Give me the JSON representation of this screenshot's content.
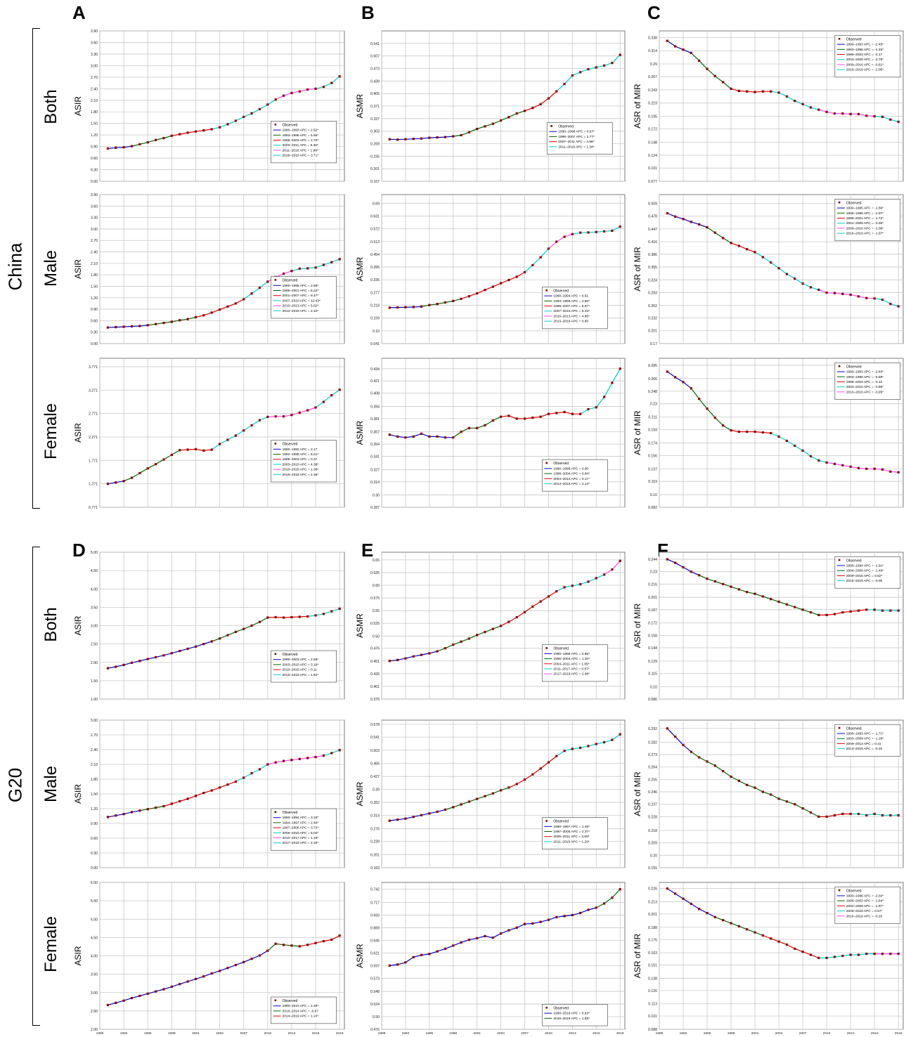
{
  "column_letters": [
    "A",
    "B",
    "C",
    "D",
    "E",
    "F"
  ],
  "group_labels": {
    "china": "China",
    "g20": "G20"
  },
  "row_labels": [
    "Both",
    "Male",
    "Female"
  ],
  "legend_observed": "Observed",
  "series_colors": [
    "#0000cc",
    "#006600",
    "#dd0000",
    "#00cccc",
    "#ff44ff",
    "#00cccc"
  ],
  "observed_color": "#8b0000",
  "xaxis_g20_ticks": [
    "1989",
    "1992",
    "1995",
    "1998",
    "2001",
    "2004",
    "2007",
    "2010",
    "2013",
    "2016",
    "2019"
  ],
  "chart_data": [
    {
      "id": "A1",
      "type": "line",
      "ylabel": "ASIR",
      "x": [
        1990,
        2019
      ],
      "yticks": [
        "0.00",
        "0.30",
        "0.60",
        "0.90",
        "1.20",
        "1.50",
        "1.80",
        "2.10",
        "2.40",
        "2.70",
        "3.00",
        "3.30",
        "3.60",
        "3.90"
      ],
      "ylim": [
        0,
        3.9
      ],
      "observed": [
        0.85,
        0.87,
        0.88,
        0.91,
        0.96,
        1.01,
        1.07,
        1.12,
        1.18,
        1.22,
        1.26,
        1.29,
        1.32,
        1.35,
        1.4,
        1.48,
        1.57,
        1.67,
        1.76,
        1.87,
        1.99,
        2.12,
        2.22,
        2.29,
        2.33,
        2.38,
        2.4,
        2.45,
        2.55,
        2.72
      ],
      "segments": [
        "1990–1993 APC = 2.52*",
        "1993–1998 APC = 5.65*",
        "1998–2003 APC = 2.70*",
        "2003–2011 APC = 6.36*",
        "2011–2016 APC = 1.88*",
        "2016–2019 APC = 3.71*"
      ]
    },
    {
      "id": "B1",
      "type": "line",
      "ylabel": "ASMR",
      "x": [
        1990,
        2019
      ],
      "yticks": [
        "0.167",
        "0.201",
        "0.235",
        "0.269",
        "0.303",
        "0.337",
        "0.371",
        "0.405",
        "0.439",
        "0.473",
        "0.507",
        "0.541"
      ],
      "ylim": [
        0.167,
        0.575
      ],
      "observed": [
        0.281,
        0.28,
        0.281,
        0.282,
        0.283,
        0.285,
        0.286,
        0.287,
        0.289,
        0.292,
        0.3,
        0.309,
        0.316,
        0.323,
        0.332,
        0.341,
        0.351,
        0.358,
        0.366,
        0.376,
        0.392,
        0.411,
        0.431,
        0.454,
        0.463,
        0.471,
        0.476,
        0.481,
        0.488,
        0.51
      ],
      "segments": [
        "1990–1998 APC = 0.67*",
        "1998–2007 APC = 2.77*",
        "2007–2011 APC = 4.96*",
        "2011–2019 APC = 1.34*"
      ]
    },
    {
      "id": "C1",
      "type": "line",
      "ylabel": "ASR of MIR",
      "x": [
        1990,
        2019
      ],
      "yticks": [
        "0.077",
        "0.101",
        "0.124",
        "0.148",
        "0.172",
        "0.195",
        "0.219",
        "0.243",
        "0.267",
        "0.29",
        "0.314",
        "0.338"
      ],
      "ylim": [
        0.077,
        0.35
      ],
      "observed": [
        0.332,
        0.322,
        0.316,
        0.31,
        0.296,
        0.281,
        0.268,
        0.257,
        0.245,
        0.241,
        0.24,
        0.239,
        0.24,
        0.24,
        0.238,
        0.231,
        0.223,
        0.217,
        0.211,
        0.207,
        0.203,
        0.2,
        0.2,
        0.199,
        0.199,
        0.196,
        0.195,
        0.194,
        0.189,
        0.185
      ],
      "segments": [
        "1990–1993 APC = -2.45*",
        "1993–1998 APC = -4.46*",
        "1998–2003 APC = -0.17",
        "2003–2009 APC = -2.78*",
        "2009–2016 APC = -0.61*",
        "2016–2019 APC = -2.06*"
      ]
    },
    {
      "id": "A2",
      "type": "line",
      "ylabel": "ASIR",
      "x": [
        1990,
        2019
      ],
      "yticks": [
        "0.00",
        "0.30",
        "0.60",
        "0.90",
        "1.20",
        "1.50",
        "1.80",
        "2.10",
        "2.40",
        "2.70",
        "3.00",
        "3.30",
        "3.60",
        "3.90"
      ],
      "ylim": [
        0,
        3.9
      ],
      "observed": [
        0.42,
        0.43,
        0.44,
        0.45,
        0.46,
        0.48,
        0.51,
        0.54,
        0.57,
        0.61,
        0.64,
        0.69,
        0.74,
        0.81,
        0.89,
        0.97,
        1.05,
        1.16,
        1.31,
        1.46,
        1.62,
        1.74,
        1.83,
        1.9,
        1.96,
        1.97,
        1.99,
        2.06,
        2.13,
        2.21
      ],
      "segments": [
        "1990–1995 APC = 2.56*",
        "1995–2001 APC = 6.24*",
        "2001–2007 APC = 9.47*",
        "2007–2010 APC = 12.43*",
        "2010–2013 APC = 5.62*",
        "2013–2019 APC = 2.10*"
      ]
    },
    {
      "id": "B2",
      "type": "line",
      "ylabel": "ASMR",
      "x": [
        1990,
        2019
      ],
      "yticks": [
        "0.041",
        "0.10",
        "0.159",
        "0.218",
        "0.277",
        "0.336",
        "0.395",
        "0.454",
        "0.513",
        "0.572",
        "0.631",
        "0.69"
      ],
      "ylim": [
        0.041,
        0.73
      ],
      "observed": [
        0.207,
        0.208,
        0.209,
        0.21,
        0.212,
        0.219,
        0.224,
        0.231,
        0.238,
        0.248,
        0.26,
        0.273,
        0.289,
        0.304,
        0.32,
        0.335,
        0.35,
        0.371,
        0.404,
        0.44,
        0.48,
        0.512,
        0.535,
        0.547,
        0.554,
        0.555,
        0.557,
        0.56,
        0.563,
        0.582
      ],
      "segments": [
        "1990–1994 APC = 0.51",
        "1994–1999 APC = 2.86*",
        "1999–2007 APC = 5.57*",
        "2007–2010 APC = 9.43*",
        "2010–2013 APC = 4.85*",
        "2013–2019 APC = 0.60"
      ]
    },
    {
      "id": "C2",
      "type": "line",
      "ylabel": "ASR of MIR",
      "x": [
        1990,
        2019
      ],
      "yticks": [
        "0.17",
        "0.201",
        "0.232",
        "0.262",
        "0.293",
        "0.324",
        "0.355",
        "0.386",
        "0.416",
        "0.447",
        "0.478",
        "0.509"
      ],
      "ylim": [
        0.17,
        0.53
      ],
      "observed": [
        0.485,
        0.477,
        0.471,
        0.464,
        0.458,
        0.451,
        0.438,
        0.425,
        0.413,
        0.406,
        0.398,
        0.391,
        0.379,
        0.366,
        0.352,
        0.338,
        0.327,
        0.315,
        0.306,
        0.3,
        0.293,
        0.292,
        0.29,
        0.288,
        0.284,
        0.28,
        0.279,
        0.276,
        0.266,
        0.26
      ],
      "segments": [
        "1990–1995 APC = -1.56*",
        "1995–1998 APC = -2.97*",
        "1998–2001 APC = -1.72*",
        "2001–2009 APC = -3.36*",
        "2009–2016 APC = -1.09*",
        "2016–2019 APC = -1.97*"
      ]
    },
    {
      "id": "A3",
      "type": "line",
      "ylabel": "ASIR",
      "x": [
        1990,
        2019
      ],
      "yticks": [
        "0.771",
        "1.271",
        "1.771",
        "2.271",
        "2.771",
        "3.271",
        "3.771"
      ],
      "ylim": [
        0.771,
        3.95
      ],
      "observed": [
        1.271,
        1.3,
        1.33,
        1.4,
        1.5,
        1.6,
        1.69,
        1.79,
        1.89,
        1.99,
        2.0,
        2.01,
        1.98,
        2.0,
        2.12,
        2.21,
        2.3,
        2.41,
        2.52,
        2.63,
        2.7,
        2.71,
        2.71,
        2.74,
        2.79,
        2.84,
        2.9,
        3.02,
        3.16,
        3.28
      ],
      "segments": [
        "1990–1992 APC = 2.17",
        "1992–1999 APC = 5.21*",
        "1999–2003 APC = 0.37",
        "2003–2010 APC = 4.38*",
        "2010–2016 APC = 1.38*",
        "2016–2019 APC = 4.36*"
      ]
    },
    {
      "id": "B3",
      "type": "line",
      "ylabel": "ASMR",
      "x": [
        1990,
        2019
      ],
      "yticks": [
        "0.287",
        "0.30",
        "0.314",
        "0.327",
        "0.341",
        "0.354",
        "0.367",
        "0.381",
        "0.394",
        "0.408",
        "0.421",
        "0.434"
      ],
      "ylim": [
        0.287,
        0.445
      ],
      "observed": [
        0.364,
        0.362,
        0.361,
        0.362,
        0.365,
        0.362,
        0.362,
        0.361,
        0.361,
        0.367,
        0.371,
        0.371,
        0.374,
        0.379,
        0.383,
        0.384,
        0.381,
        0.381,
        0.382,
        0.383,
        0.386,
        0.387,
        0.388,
        0.386,
        0.386,
        0.391,
        0.393,
        0.404,
        0.419,
        0.434
      ],
      "segments": [
        "1990–1998 APC = 0.00",
        "1998–2004 APC = 0.84*",
        "2004–2014 APC = 0.17*",
        "2014–2019 APC = 2.14*"
      ]
    },
    {
      "id": "C3",
      "type": "line",
      "ylabel": "ASR of MIR",
      "x": [
        1990,
        2019
      ],
      "yticks": [
        "0.082",
        "0.10",
        "0.119",
        "0.137",
        "0.156",
        "0.174",
        "0.193",
        "0.211",
        "0.23",
        "0.248",
        "0.266",
        "0.285"
      ],
      "ylim": [
        0.082,
        0.295
      ],
      "observed": [
        0.276,
        0.268,
        0.261,
        0.252,
        0.237,
        0.223,
        0.21,
        0.199,
        0.192,
        0.19,
        0.19,
        0.19,
        0.189,
        0.188,
        0.183,
        0.177,
        0.17,
        0.163,
        0.155,
        0.149,
        0.146,
        0.144,
        0.142,
        0.14,
        0.138,
        0.137,
        0.137,
        0.136,
        0.133,
        0.132
      ],
      "segments": [
        "1990–1993 APC = -2.83*",
        "1993–1998 APC = -5.59*",
        "1998–2003 APC = -0.10",
        "2003–2010 APC = -3.88*",
        "2010–2019 APC = -0.95*"
      ]
    },
    {
      "id": "D1",
      "type": "line",
      "ylabel": "ASIR",
      "x": [
        1990,
        2019
      ],
      "yticks": [
        "1.00",
        "1.50",
        "2.00",
        "2.50",
        "3.00",
        "3.50",
        "4.00",
        "4.50",
        "5.00"
      ],
      "ylim": [
        1.0,
        5.0
      ],
      "observed": [
        1.84,
        1.88,
        1.93,
        1.99,
        2.04,
        2.09,
        2.14,
        2.19,
        2.25,
        2.31,
        2.37,
        2.43,
        2.5,
        2.57,
        2.65,
        2.74,
        2.83,
        2.91,
        3.0,
        3.1,
        3.22,
        3.23,
        3.22,
        3.23,
        3.24,
        3.25,
        3.28,
        3.32,
        3.39,
        3.46
      ],
      "segments": [
        "1990–2003 APC = 2.68*",
        "2003–2010 APC = 3.18*",
        "2010–2015 APC = 0.11",
        "2015–2019 APC = 1.52*"
      ]
    },
    {
      "id": "E1",
      "type": "line",
      "ylabel": "ASMR",
      "x": [
        1990,
        2019
      ],
      "yticks": [
        "0.376",
        "0.401",
        "0.426",
        "0.451",
        "0.476",
        "0.50",
        "0.525",
        "0.55",
        "0.575",
        "0.60",
        "0.625",
        "0.65"
      ],
      "ylim": [
        0.376,
        0.665
      ],
      "observed": [
        0.451,
        0.453,
        0.456,
        0.46,
        0.463,
        0.466,
        0.47,
        0.476,
        0.483,
        0.489,
        0.495,
        0.502,
        0.508,
        0.514,
        0.52,
        0.528,
        0.537,
        0.547,
        0.558,
        0.568,
        0.578,
        0.588,
        0.596,
        0.599,
        0.602,
        0.607,
        0.614,
        0.621,
        0.631,
        0.648
      ],
      "segments": [
        "1990–1996 APC = 0.85*",
        "1996–2004 APC = 1.20*",
        "2004–2011 APC = 1.85*",
        "2011–2017 APC = 0.87*",
        "2017–2019 APC = 2.08*"
      ]
    },
    {
      "id": "F1",
      "type": "line",
      "ylabel": "ASR of MIR",
      "x": [
        1990,
        2019
      ],
      "yticks": [
        "0.086",
        "0.10",
        "0.115",
        "0.129",
        "0.144",
        "0.158",
        "0.172",
        "0.187",
        "0.201",
        "0.216",
        "0.23",
        "0.244"
      ],
      "ylim": [
        0.086,
        0.252
      ],
      "observed": [
        0.244,
        0.24,
        0.235,
        0.23,
        0.226,
        0.222,
        0.219,
        0.216,
        0.213,
        0.21,
        0.207,
        0.205,
        0.202,
        0.199,
        0.196,
        0.193,
        0.19,
        0.187,
        0.184,
        0.181,
        0.181,
        0.182,
        0.184,
        0.185,
        0.186,
        0.187,
        0.187,
        0.186,
        0.186,
        0.186
      ],
      "segments": [
        "1990–1994 APC = -1.91*",
        "1994–2009 APC = -1.49*",
        "2009–2015 APC = 0.62*",
        "2015–2019 APC = -0.06"
      ]
    },
    {
      "id": "D2",
      "type": "line",
      "ylabel": "ASIR",
      "x": [
        1990,
        2019
      ],
      "yticks": [
        "0.00",
        "0.30",
        "0.60",
        "0.90",
        "1.20",
        "1.50",
        "1.80",
        "2.10",
        "2.40",
        "2.70",
        "3.00"
      ],
      "ylim": [
        0,
        3.0
      ],
      "observed": [
        1.03,
        1.06,
        1.09,
        1.13,
        1.16,
        1.19,
        1.22,
        1.25,
        1.3,
        1.35,
        1.4,
        1.46,
        1.52,
        1.57,
        1.63,
        1.69,
        1.75,
        1.83,
        1.92,
        2.0,
        2.1,
        2.14,
        2.17,
        2.19,
        2.21,
        2.23,
        2.25,
        2.28,
        2.33,
        2.39
      ],
      "segments": [
        "1990–1994 APC = 3.18*",
        "1994–1997 APC = 2.46*",
        "1997–2006 APC = 3.73*",
        "2006–2010 APC = 5.04*",
        "2010–2017 APC = 1.19*",
        "2017–2019 APC = 2.32*"
      ]
    },
    {
      "id": "E2",
      "type": "line",
      "ylabel": "ASMR",
      "x": [
        1990,
        2019
      ],
      "yticks": [
        "0.163",
        "0.201",
        "0.239",
        "0.276",
        "0.314",
        "0.352",
        "0.39",
        "0.427",
        "0.465",
        "0.503",
        "0.541",
        "0.578"
      ],
      "ylim": [
        0.163,
        0.59
      ],
      "observed": [
        0.299,
        0.302,
        0.305,
        0.31,
        0.315,
        0.32,
        0.325,
        0.331,
        0.338,
        0.346,
        0.354,
        0.362,
        0.37,
        0.378,
        0.387,
        0.395,
        0.405,
        0.418,
        0.433,
        0.45,
        0.468,
        0.486,
        0.501,
        0.507,
        0.51,
        0.515,
        0.521,
        0.526,
        0.533,
        0.549
      ],
      "segments": [
        "1990–1997 APC = 1.48*",
        "1997–2005 APC = 2.37*",
        "2005–2011 APC = 3.68*",
        "2011–2019 APC = 1.29*"
      ]
    },
    {
      "id": "F2",
      "type": "line",
      "ylabel": "ASR of MIR",
      "x": [
        1990,
        2019
      ],
      "yticks": [
        "0.191",
        "0.20",
        "0.209",
        "0.218",
        "0.228",
        "0.237",
        "0.246",
        "0.255",
        "0.264",
        "0.273",
        "0.282",
        "0.292"
      ],
      "ylim": [
        0.191,
        0.298
      ],
      "observed": [
        0.292,
        0.286,
        0.28,
        0.275,
        0.271,
        0.268,
        0.265,
        0.261,
        0.257,
        0.254,
        0.251,
        0.249,
        0.246,
        0.244,
        0.241,
        0.239,
        0.237,
        0.234,
        0.231,
        0.228,
        0.228,
        0.229,
        0.23,
        0.23,
        0.23,
        0.229,
        0.23,
        0.229,
        0.229,
        0.229
      ],
      "segments": [
        "1990–1993 APC = -1.71*",
        "1993–2009 APC = -1.18*",
        "2009–2013 APC = 0.41",
        "2013–2019 APC = -0.10"
      ]
    },
    {
      "id": "D3",
      "type": "line",
      "ylabel": "ASIR",
      "x": [
        1990,
        2019
      ],
      "yticks": [
        "2.00",
        "2.50",
        "3.00",
        "3.50",
        "4.00",
        "4.50",
        "5.00",
        "5.50",
        "6.00"
      ],
      "ylim": [
        2.0,
        6.0
      ],
      "observed": [
        2.66,
        2.72,
        2.78,
        2.85,
        2.91,
        2.97,
        3.03,
        3.09,
        3.16,
        3.23,
        3.3,
        3.37,
        3.44,
        3.52,
        3.59,
        3.67,
        3.75,
        3.83,
        3.92,
        4.01,
        4.14,
        4.33,
        4.3,
        4.28,
        4.26,
        4.3,
        4.35,
        4.4,
        4.44,
        4.55
      ],
      "segments": [
        "1990–2010 APC = 2.49*",
        "2010–2014 APC = -0.67",
        "2014–2019 APC = 1.14*"
      ]
    },
    {
      "id": "E3",
      "type": "line",
      "ylabel": "ASMR",
      "x": [
        1990,
        2019
      ],
      "yticks": [
        "0.476",
        "0.50",
        "0.524",
        "0.548",
        "0.573",
        "0.597",
        "0.621",
        "0.645",
        "0.669",
        "0.693",
        "0.717",
        "0.742"
      ],
      "ylim": [
        0.476,
        0.755
      ],
      "observed": [
        0.597,
        0.599,
        0.603,
        0.613,
        0.617,
        0.619,
        0.624,
        0.629,
        0.635,
        0.641,
        0.646,
        0.649,
        0.653,
        0.65,
        0.658,
        0.664,
        0.669,
        0.676,
        0.677,
        0.68,
        0.684,
        0.689,
        0.691,
        0.693,
        0.697,
        0.703,
        0.707,
        0.715,
        0.726,
        0.742
      ],
      "segments": [
        "1990–2016 APC = 0.63*",
        "2016–2019 APC = 1.58*"
      ]
    },
    {
      "id": "F3",
      "type": "line",
      "ylabel": "ASR of MIR",
      "x": [
        1990,
        2019
      ],
      "yticks": [
        "0.088",
        "0.101",
        "0.113",
        "0.126",
        "0.138",
        "0.151",
        "0.163",
        "0.176",
        "0.188",
        "0.201",
        "0.213",
        "0.226"
      ],
      "ylim": [
        0.088,
        0.232
      ],
      "observed": [
        0.226,
        0.221,
        0.216,
        0.211,
        0.206,
        0.202,
        0.198,
        0.195,
        0.192,
        0.189,
        0.186,
        0.183,
        0.18,
        0.177,
        0.174,
        0.171,
        0.167,
        0.164,
        0.161,
        0.158,
        0.158,
        0.159,
        0.16,
        0.161,
        0.161,
        0.162,
        0.162,
        0.162,
        0.162,
        0.162
      ],
      "segments": [
        "1990–1996 APC = -2.02*",
        "1996–2002 APC = -1.64*",
        "2002–2009 APC = -1.97*",
        "2009–2016 APC = 0.57*",
        "2016–2019 APC = -0.10"
      ]
    }
  ]
}
